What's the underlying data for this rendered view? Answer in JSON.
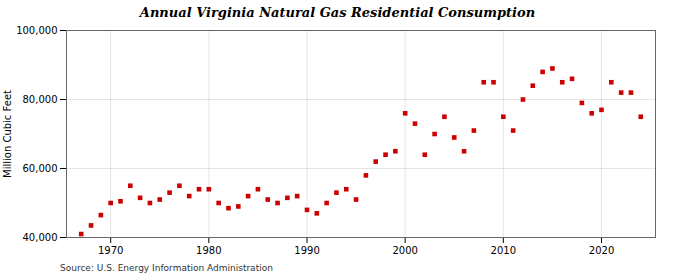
{
  "chart_data": {
    "type": "scatter",
    "title": "Annual Virginia Natural Gas Residential Consumption",
    "ylabel": "Million Cubic Feet",
    "source": "Source: U.S. Energy Information Administration",
    "x": [
      1967,
      1968,
      1969,
      1970,
      1971,
      1972,
      1973,
      1974,
      1975,
      1976,
      1977,
      1978,
      1979,
      1980,
      1981,
      1982,
      1983,
      1984,
      1985,
      1986,
      1987,
      1988,
      1989,
      1990,
      1991,
      1992,
      1993,
      1994,
      1995,
      1996,
      1997,
      1998,
      1999,
      2000,
      2001,
      2002,
      2003,
      2004,
      2005,
      2006,
      2007,
      2008,
      2009,
      2010,
      2011,
      2012,
      2013,
      2014,
      2015,
      2016,
      2017,
      2018,
      2019,
      2020,
      2021,
      2022,
      2023,
      2024
    ],
    "values": [
      41000,
      43500,
      46500,
      50000,
      50500,
      55000,
      51500,
      50000,
      51000,
      53000,
      55000,
      52000,
      54000,
      54000,
      50000,
      48500,
      49000,
      52000,
      54000,
      51000,
      50000,
      51500,
      52000,
      48000,
      47000,
      50000,
      53000,
      54000,
      51000,
      58000,
      62000,
      64000,
      65000,
      76000,
      73000,
      64000,
      70000,
      75000,
      69000,
      65000,
      71000,
      85000,
      85000,
      75000,
      71000,
      80000,
      84000,
      88000,
      89000,
      85000,
      86000,
      79000,
      76000,
      77000,
      85000,
      82000,
      82000,
      75000
    ],
    "color": "#cc0000",
    "marker": "square",
    "xlim": [
      1965.5,
      2025.5
    ],
    "xticks": [
      1970,
      1980,
      1990,
      2000,
      2010,
      2020
    ],
    "ylim": [
      40000,
      100000
    ],
    "yticks": [
      {
        "value": 40000,
        "label": "40,000"
      },
      {
        "value": 60000,
        "label": "60,000"
      },
      {
        "value": 80000,
        "label": "80,000"
      },
      {
        "value": 100000,
        "label": "100,000"
      }
    ],
    "grid": true
  }
}
